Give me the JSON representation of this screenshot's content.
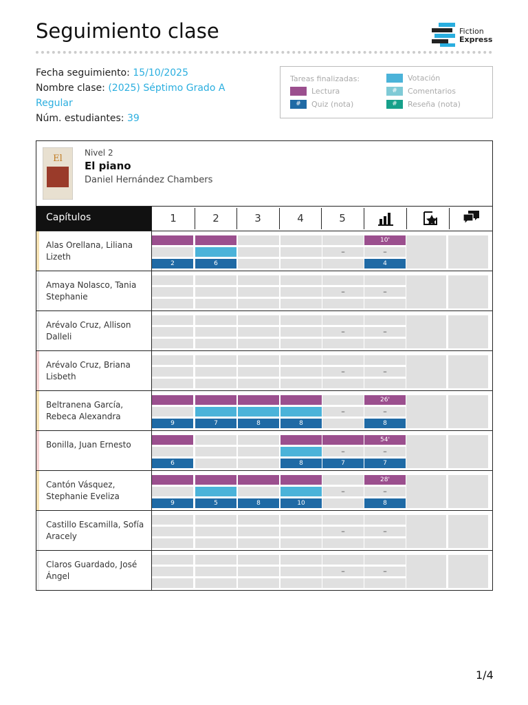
{
  "header": {
    "title": "Seguimiento clase",
    "logo": [
      "Fiction",
      "Express"
    ]
  },
  "info": {
    "date_label": "Fecha seguimiento:",
    "date": "15/10/2025",
    "class_label": "Nombre clase:",
    "class": "(2025) Séptimo Grado A Regular",
    "students_label": "Núm. estudiantes:",
    "students": 39
  },
  "legend": {
    "title": "Tareas finalizadas:",
    "items": [
      {
        "label": "Lectura",
        "color": "#9b4f8e",
        "symbol": null
      },
      {
        "label": "Quiz (nota)",
        "color": "#1f6aa5",
        "symbol": "#"
      },
      {
        "label": "Votación",
        "color": "#4bb3d9",
        "symbol": null
      },
      {
        "label": "Comentarios",
        "color": "#7fcad6",
        "symbol": "#"
      },
      {
        "label": "Reseña (nota)",
        "color": "#16a08a",
        "symbol": "#"
      }
    ]
  },
  "book": {
    "level": "Nivel 2",
    "title": "El piano",
    "author": "Daniel Hernández Chambers"
  },
  "table": {
    "header": "Capítulos",
    "chapters": [
      1,
      2,
      3,
      4,
      5
    ],
    "students": [
      {
        "name": "Alas Orellana, Liliana Lizeth",
        "color": "#f6e2b2",
        "read": [
          true,
          true,
          false,
          false,
          false
        ],
        "vote": [
          false,
          true,
          false,
          false,
          "–"
        ],
        "quiz": [
          2,
          6,
          null,
          null,
          null
        ],
        "time": "10'",
        "votes": "–",
        "avg": 4
      },
      {
        "name": "Amaya Nolasco, Tania Stephanie",
        "color": "#eeeeee",
        "read": [
          false,
          false,
          false,
          false,
          false
        ],
        "vote": [
          false,
          false,
          false,
          false,
          "–"
        ],
        "quiz": [
          null,
          null,
          null,
          null,
          null
        ],
        "time": null,
        "votes": "–",
        "avg": null
      },
      {
        "name": "Arévalo Cruz, Allison Dalleli",
        "color": "#eeeeee",
        "read": [
          false,
          false,
          false,
          false,
          false
        ],
        "vote": [
          false,
          false,
          false,
          false,
          "–"
        ],
        "quiz": [
          null,
          null,
          null,
          null,
          null
        ],
        "time": null,
        "votes": "–",
        "avg": null
      },
      {
        "name": "Arévalo Cruz, Briana Lisbeth",
        "color": "#f6d2d2",
        "read": [
          false,
          false,
          false,
          false,
          false
        ],
        "vote": [
          false,
          false,
          false,
          false,
          "–"
        ],
        "quiz": [
          null,
          null,
          null,
          null,
          null
        ],
        "time": null,
        "votes": "–",
        "avg": null
      },
      {
        "name": "Beltranena García, Rebeca Alexandra",
        "color": "#f6e2b2",
        "read": [
          true,
          true,
          true,
          true,
          false
        ],
        "vote": [
          false,
          true,
          true,
          true,
          "–"
        ],
        "quiz": [
          9,
          7,
          8,
          8,
          null
        ],
        "time": "26'",
        "votes": "–",
        "avg": 8
      },
      {
        "name": "Bonilla, Juan Ernesto",
        "color": "#f6d2d2",
        "read": [
          true,
          false,
          false,
          true,
          true
        ],
        "vote": [
          false,
          false,
          false,
          true,
          "–"
        ],
        "quiz": [
          6,
          null,
          null,
          8,
          7
        ],
        "time": "54'",
        "votes": "–",
        "avg": 7
      },
      {
        "name": "Cantón Vásquez, Stephanie Eveliza",
        "color": "#f6e2b2",
        "read": [
          true,
          true,
          true,
          true,
          false
        ],
        "vote": [
          false,
          true,
          false,
          true,
          "–"
        ],
        "quiz": [
          9,
          5,
          8,
          10,
          null
        ],
        "time": "28'",
        "votes": "–",
        "avg": 8
      },
      {
        "name": "Castillo Escamilla, Sofía Aracely",
        "color": "#eeeeee",
        "read": [
          false,
          false,
          false,
          false,
          false
        ],
        "vote": [
          false,
          false,
          false,
          false,
          "–"
        ],
        "quiz": [
          null,
          null,
          null,
          null,
          null
        ],
        "time": null,
        "votes": "–",
        "avg": null
      },
      {
        "name": "Claros Guardado, José Ángel",
        "color": "#eeeeee",
        "read": [
          false,
          false,
          false,
          false,
          false
        ],
        "vote": [
          false,
          false,
          false,
          false,
          "–"
        ],
        "quiz": [
          null,
          null,
          null,
          null,
          null
        ],
        "time": null,
        "votes": "–",
        "avg": null
      }
    ]
  },
  "footer": {
    "page": "1/4"
  }
}
